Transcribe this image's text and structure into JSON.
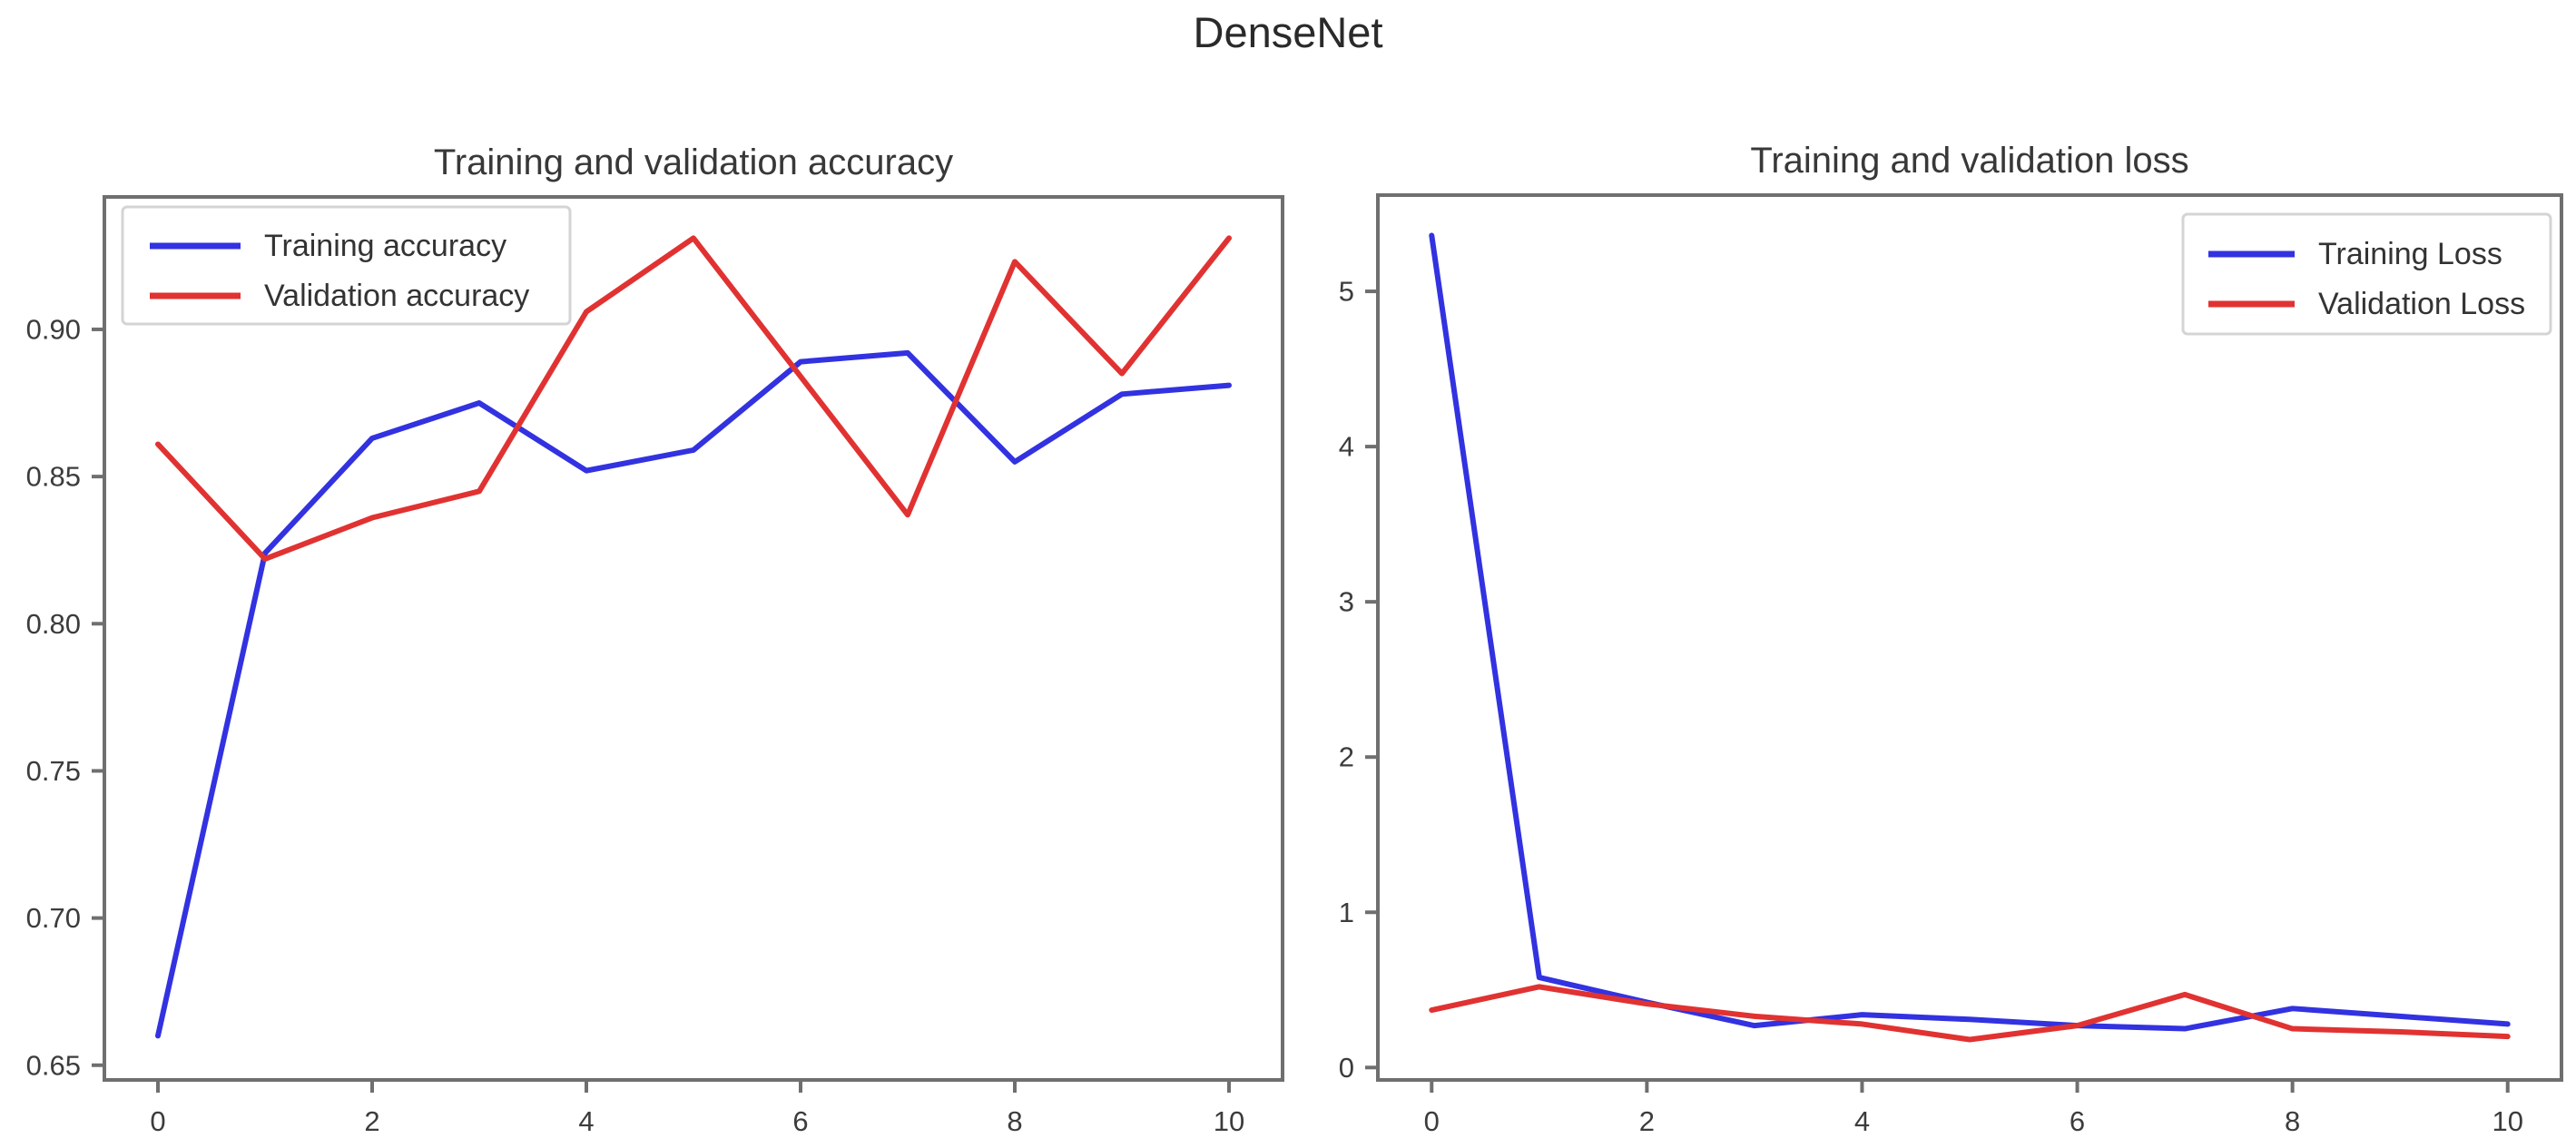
{
  "figure": {
    "title": "DenseNet"
  },
  "colors": {
    "training": "#3232e1",
    "validation": "#e13232",
    "spine": "#6f6f6f",
    "legend_border": "#d4d4d4",
    "background": "#ffffff"
  },
  "chart_data": [
    {
      "type": "line",
      "title": "Training and validation accuracy",
      "x": [
        0,
        1,
        2,
        3,
        4,
        5,
        6,
        7,
        8,
        9,
        10
      ],
      "series": [
        {
          "name": "Training accuracy",
          "color_key": "training",
          "values": [
            0.66,
            0.824,
            0.863,
            0.875,
            0.852,
            0.859,
            0.889,
            0.892,
            0.855,
            0.878,
            0.881
          ]
        },
        {
          "name": "Validation accuracy",
          "color_key": "validation",
          "values": [
            0.861,
            0.822,
            0.836,
            0.845,
            0.906,
            0.931,
            0.884,
            0.837,
            0.923,
            0.885,
            0.931
          ]
        }
      ],
      "xticks": [
        0,
        2,
        4,
        6,
        8,
        10
      ],
      "xtick_labels": [
        "0",
        "2",
        "4",
        "6",
        "8",
        "10"
      ],
      "yticks": [
        0.65,
        0.7,
        0.75,
        0.8,
        0.85,
        0.9
      ],
      "ytick_labels": [
        "0.65",
        "0.70",
        "0.75",
        "0.80",
        "0.85",
        "0.90"
      ],
      "xlim": [
        -0.5,
        10.5
      ],
      "ylim": [
        0.645,
        0.945
      ],
      "grid": false,
      "legend_position": "upper-left"
    },
    {
      "type": "line",
      "title": "Training and validation loss",
      "x": [
        0,
        1,
        2,
        3,
        4,
        5,
        6,
        7,
        8,
        9,
        10
      ],
      "series": [
        {
          "name": "Training Loss",
          "color_key": "training",
          "values": [
            5.36,
            0.58,
            0.42,
            0.27,
            0.34,
            0.31,
            0.27,
            0.25,
            0.38,
            0.33,
            0.28
          ]
        },
        {
          "name": "Validation Loss",
          "color_key": "validation",
          "values": [
            0.37,
            0.52,
            0.41,
            0.33,
            0.28,
            0.18,
            0.27,
            0.47,
            0.25,
            0.23,
            0.2
          ]
        }
      ],
      "xticks": [
        0,
        2,
        4,
        6,
        8,
        10
      ],
      "xtick_labels": [
        "0",
        "2",
        "4",
        "6",
        "8",
        "10"
      ],
      "yticks": [
        0,
        1,
        2,
        3,
        4,
        5
      ],
      "ytick_labels": [
        "0",
        "1",
        "2",
        "3",
        "4",
        "5"
      ],
      "xlim": [
        -0.5,
        10.5
      ],
      "ylim": [
        -0.08,
        5.62
      ],
      "grid": false,
      "legend_position": "upper-right"
    }
  ]
}
